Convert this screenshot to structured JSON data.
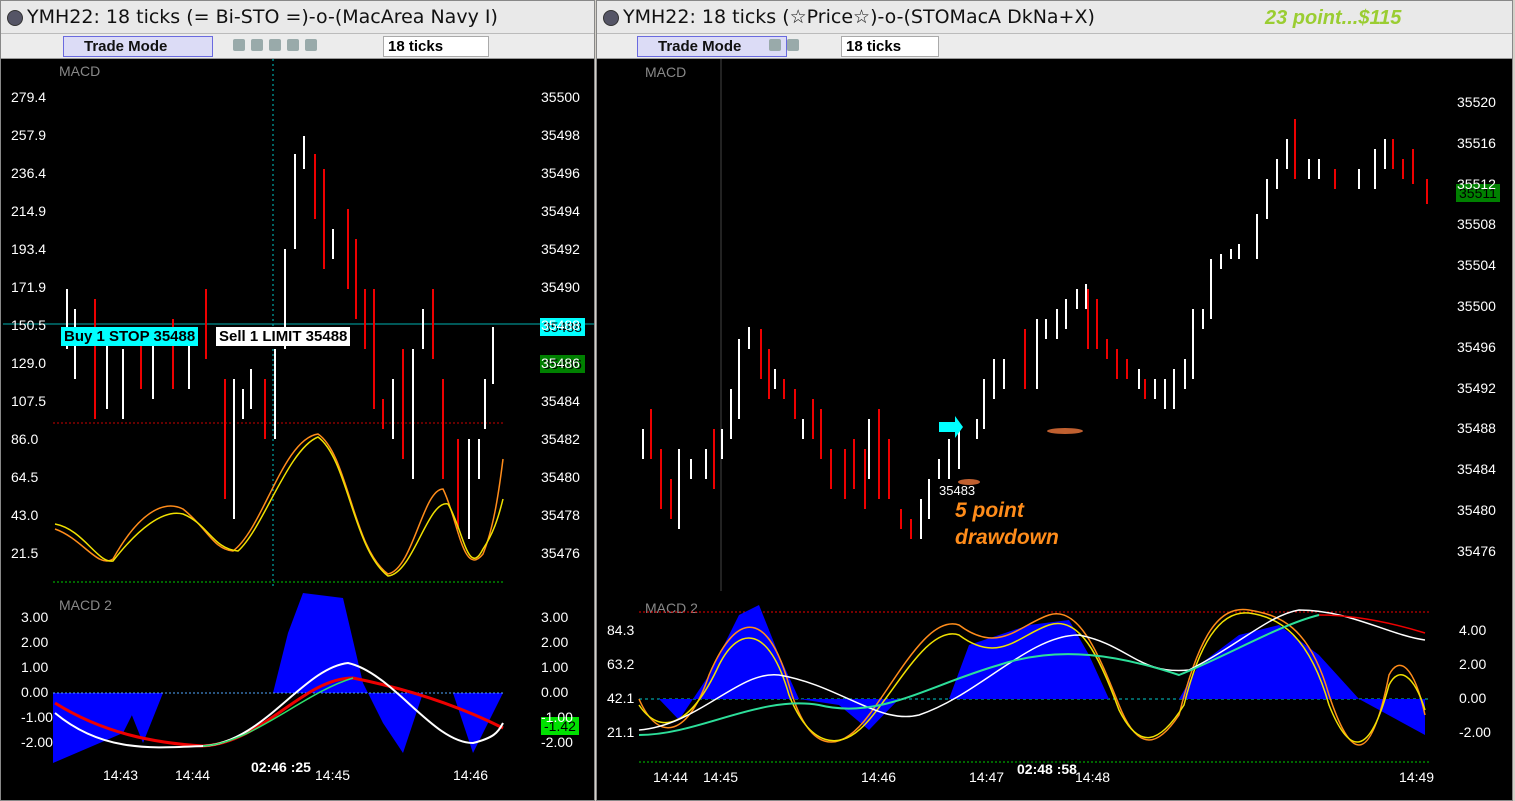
{
  "left": {
    "title": "YMH22: 18 ticks (= Bi-STO =)-o-(MacArea Navy I)",
    "trade_mode": "Trade Mode",
    "interval": "18 ticks",
    "pane1_label": "MACD",
    "pane2_label": "MACD 2",
    "left_axis": [
      "279.4",
      "257.9",
      "236.4",
      "214.9",
      "193.4",
      "171.9",
      "150.5",
      "129.0",
      "107.5",
      "86.0",
      "64.5",
      "43.0",
      "21.5"
    ],
    "right_axis": [
      "35500",
      "35498",
      "35496",
      "35494",
      "35492",
      "35490",
      "35488",
      "35486",
      "35484",
      "35482",
      "35480",
      "35478",
      "35476"
    ],
    "order_buy": "Buy 1 STOP 35488",
    "order_sell": "Sell 1 LIMIT 35488",
    "price_tag1": "35488",
    "price_tag2": "35486",
    "lower_left_axis": [
      "3.00",
      "2.00",
      "1.00",
      "0.00",
      "-1.00",
      "-2.00"
    ],
    "lower_right_axis": [
      "3.00",
      "2.00",
      "1.00",
      "0.00",
      "-1.00",
      "-2.00"
    ],
    "lower_tag": "-1.42",
    "time_axis": [
      "14:43",
      "14:44",
      "14:45",
      "14:46"
    ],
    "time_readout": "02:46 :25"
  },
  "right": {
    "title": "YMH22: 18 ticks (☆Price☆)-o-(STOMacA DkNa+X)",
    "headline": "23 point...$115",
    "trade_mode": "Trade Mode",
    "interval": "18 ticks",
    "pane1_label": "MACD",
    "pane2_label": "MACD 2",
    "right_axis": [
      "35520",
      "35516",
      "35512",
      "35508",
      "35504",
      "35500",
      "35496",
      "35492",
      "35488",
      "35484",
      "35480",
      "35476"
    ],
    "price_tag": "35511",
    "entry_label": "35483",
    "drawdown_line1": "5 point",
    "drawdown_line2": "drawdown",
    "lower_left_axis": [
      "84.3",
      "63.2",
      "42.1",
      "21.1"
    ],
    "lower_right_axis": [
      "4.00",
      "2.00",
      "0.00",
      "-2.00"
    ],
    "time_axis": [
      "14:44",
      "14:45",
      "14:46",
      "14:47",
      "14:48",
      "14:49"
    ],
    "time_readout": "02:48 :58"
  },
  "colors": {
    "up": "#ffffff",
    "down": "#e00000",
    "accent": "#00ffff",
    "headline": "#9acd32",
    "annotation": "#ff8c1a",
    "histogram": "#0000ff"
  }
}
